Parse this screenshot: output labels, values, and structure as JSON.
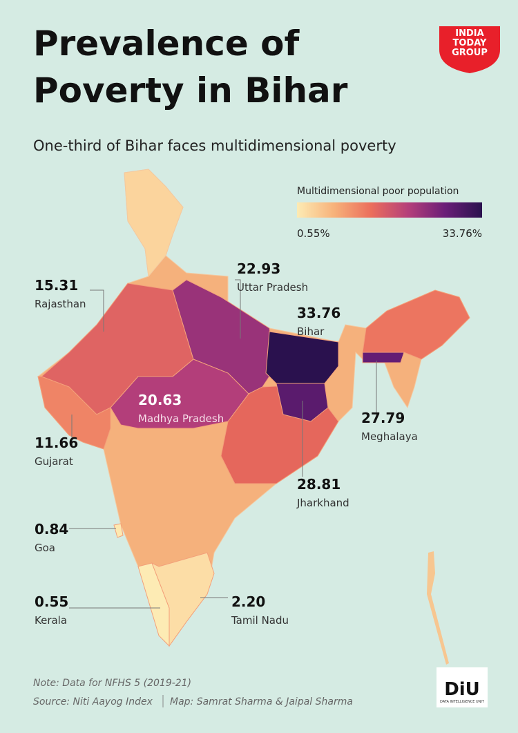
{
  "header": {
    "title_lines": [
      "Prevalence of",
      "Poverty in Bihar"
    ],
    "subtitle": "One-third of Bihar faces multidimensional poverty",
    "logo_lines": [
      "INDIA",
      "TODAY",
      "GROUP"
    ]
  },
  "legend": {
    "title": "Multidimensional poor population",
    "min": {
      "value": 0.55,
      "label": "0.55%"
    },
    "max": {
      "value": 33.76,
      "label": "33.76%"
    },
    "colors": [
      "#fdebb4",
      "#f7b27a",
      "#eb6e5c",
      "#b53f7a",
      "#6a1e78",
      "#2a114e"
    ]
  },
  "annotations": [
    {
      "value": "15.31",
      "state": "Rajasthan"
    },
    {
      "value": "22.93",
      "state": "Uttar Pradesh"
    },
    {
      "value": "33.76",
      "state": "Bihar"
    },
    {
      "value": "20.63",
      "state": "Madhya Pradesh"
    },
    {
      "value": "27.79",
      "state": "Meghalaya"
    },
    {
      "value": "11.66",
      "state": "Gujarat"
    },
    {
      "value": "28.81",
      "state": "Jharkhand"
    },
    {
      "value": "0.84",
      "state": "Goa"
    },
    {
      "value": "0.55",
      "state": "Kerala"
    },
    {
      "value": "2.20",
      "state": "Tamil Nadu"
    }
  ],
  "footer": {
    "note": "Note: Data for NFHS 5 (2019-21)",
    "source": "Source: Niti Aayog Index",
    "credit": "Map: Samrat Sharma & Jaipal Sharma",
    "diu_logo": "DiU",
    "diu_caption": "DATA INTELLIGENCE UNIT"
  }
}
